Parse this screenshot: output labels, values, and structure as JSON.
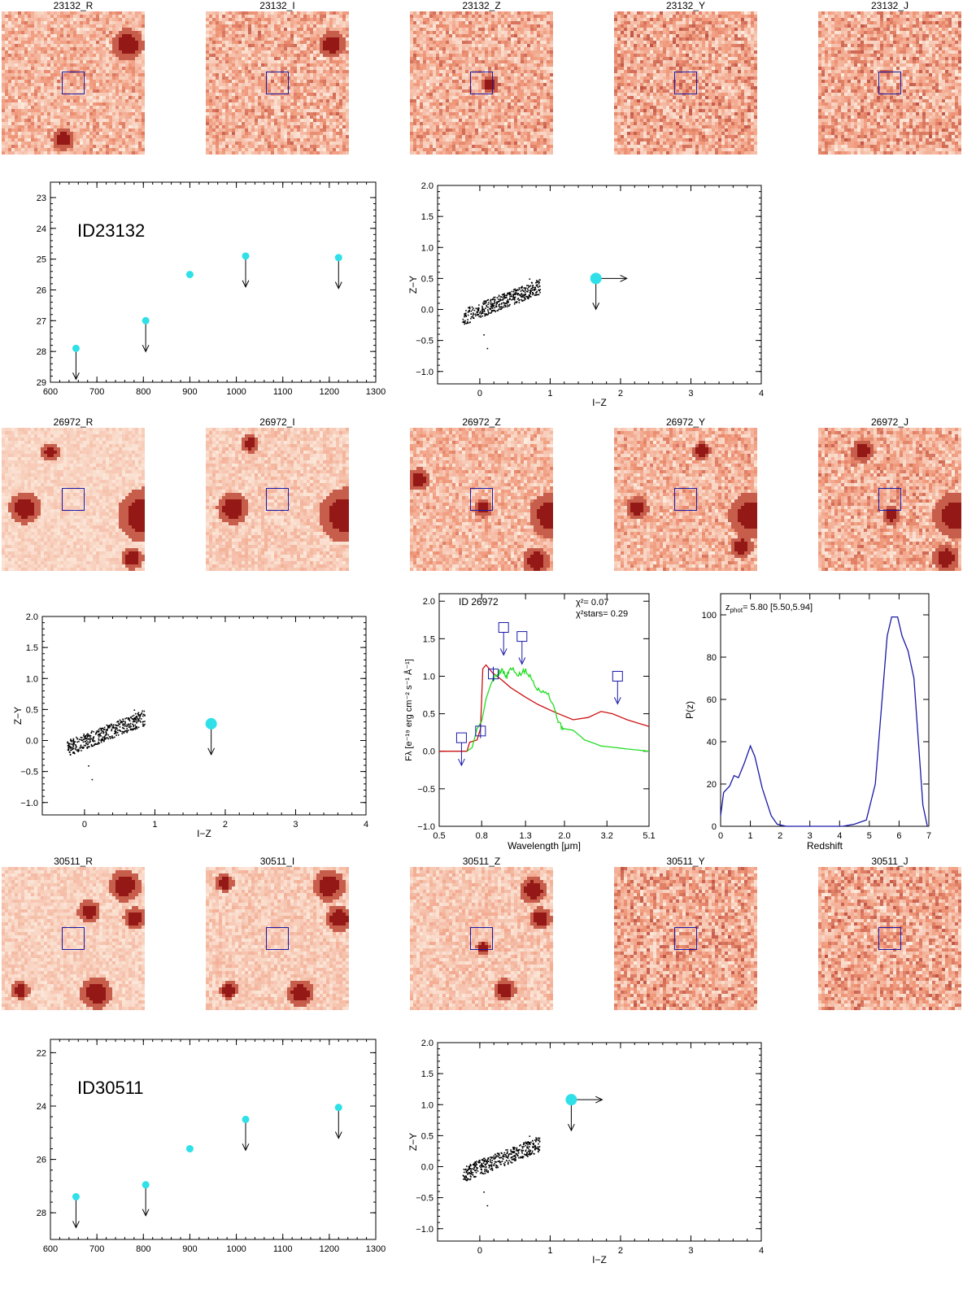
{
  "colors": {
    "cyan": "#2fe0e8",
    "blue": "#1a1aa8",
    "red": "#cc1111",
    "green": "#22dd22",
    "stamp_dark": "#8a0c0c",
    "stamp_light": "#fdf0e4"
  },
  "stamp_rows": [
    {
      "id": "23132",
      "labels": [
        "23132_R",
        "23132_I",
        "23132_Z",
        "23132_Y",
        "23132_J"
      ],
      "noise": [
        0.5,
        0.55,
        0.55,
        0.6,
        0.6
      ]
    },
    {
      "id": "26972",
      "labels": [
        "26972_R",
        "26972_I",
        "26972_Z",
        "26972_Y",
        "26972_J"
      ],
      "noise": [
        0.2,
        0.3,
        0.45,
        0.5,
        0.55
      ]
    },
    {
      "id": "30511",
      "labels": [
        "30511_R",
        "30511_I",
        "30511_Z",
        "30511_Y",
        "30511_J"
      ],
      "noise": [
        0.25,
        0.3,
        0.35,
        0.6,
        0.6
      ]
    }
  ],
  "chart_data": [
    {
      "id": "mag-23132",
      "type": "scatter",
      "label": "ID23132",
      "xlim": [
        600,
        1300
      ],
      "ylim": [
        29,
        22.5
      ],
      "xticks": [
        "600",
        "700",
        "800",
        "900",
        "1000",
        "1100",
        "1200",
        "1300"
      ],
      "yticks": [
        "23",
        "24",
        "25",
        "26",
        "27",
        "28",
        "29"
      ],
      "points": [
        {
          "x": 655,
          "y": 27.9,
          "upper": true
        },
        {
          "x": 805,
          "y": 27.0,
          "upper": true
        },
        {
          "x": 900,
          "y": 25.5,
          "upper": false
        },
        {
          "x": 1020,
          "y": 24.9,
          "upper": true
        },
        {
          "x": 1220,
          "y": 24.95,
          "upper": true
        }
      ]
    },
    {
      "id": "cc-23132",
      "type": "scatter",
      "xlabel": "I−Z",
      "ylabel": "Z−Y",
      "xlim": [
        -0.6,
        4
      ],
      "ylim": [
        -1.2,
        2
      ],
      "xticks": [
        "0",
        "1",
        "2",
        "3",
        "4"
      ],
      "yticks": [
        "−1.0",
        "−0.5",
        "0.0",
        "0.5",
        "1.0",
        "1.5",
        "2.0"
      ],
      "source": {
        "x": 1.65,
        "y": 0.5,
        "lower_x": true,
        "upper_y": true
      }
    },
    {
      "id": "cc-26972",
      "type": "scatter",
      "xlabel": "I−Z",
      "ylabel": "Z−Y",
      "xlim": [
        -0.6,
        4
      ],
      "ylim": [
        -1.2,
        2
      ],
      "xticks": [
        "0",
        "1",
        "2",
        "3",
        "4"
      ],
      "yticks": [
        "−1.0",
        "−0.5",
        "0.0",
        "0.5",
        "1.0",
        "1.5",
        "2.0"
      ],
      "source": {
        "x": 1.8,
        "y": 0.27,
        "lower_x": false,
        "upper_y": true
      }
    },
    {
      "id": "sed-26972",
      "type": "line",
      "label": "ID 26972",
      "chi2": "χ²= 0.07",
      "chi2_stars": "χ²stars= 0.29",
      "xlabel": "Wavelength [μm]",
      "ylabel": "Fλ [e⁻¹⁹ erg cm⁻² s⁻¹ Å⁻¹]",
      "xlim": [
        0.5,
        5.1
      ],
      "ylim": [
        -1.0,
        2.1
      ],
      "xticks": [
        "0.5",
        "0.8",
        "1.3",
        "2.0",
        "3.2",
        "5.1"
      ],
      "yticks": [
        "−1.0",
        "−0.5",
        "0.0",
        "0.5",
        "1.0",
        "1.5",
        "2.0"
      ],
      "galaxy": [
        [
          0.5,
          0.0
        ],
        [
          0.68,
          0.0
        ],
        [
          0.7,
          0.12
        ],
        [
          0.76,
          0.15
        ],
        [
          0.79,
          0.3
        ],
        [
          0.81,
          1.1
        ],
        [
          0.84,
          1.15
        ],
        [
          0.9,
          1.05
        ],
        [
          1.0,
          0.95
        ],
        [
          1.1,
          0.85
        ],
        [
          1.3,
          0.72
        ],
        [
          1.5,
          0.62
        ],
        [
          1.8,
          0.52
        ],
        [
          2.2,
          0.42
        ],
        [
          2.6,
          0.45
        ],
        [
          3.0,
          0.53
        ],
        [
          3.4,
          0.5
        ],
        [
          4.0,
          0.42
        ],
        [
          5.1,
          0.33
        ]
      ],
      "star": [
        [
          0.68,
          0.0
        ],
        [
          0.72,
          0.05
        ],
        [
          0.76,
          0.3
        ],
        [
          0.8,
          0.4
        ],
        [
          0.84,
          0.7
        ],
        [
          0.9,
          0.95
        ],
        [
          0.95,
          1.02
        ],
        [
          1.0,
          1.1
        ],
        [
          1.05,
          0.98
        ],
        [
          1.1,
          1.1
        ],
        [
          1.2,
          1.02
        ],
        [
          1.3,
          1.07
        ],
        [
          1.4,
          0.95
        ],
        [
          1.5,
          0.82
        ],
        [
          1.65,
          0.8
        ],
        [
          1.8,
          0.55
        ],
        [
          1.9,
          0.35
        ],
        [
          2.0,
          0.3
        ],
        [
          2.2,
          0.28
        ],
        [
          2.5,
          0.15
        ],
        [
          3.0,
          0.07
        ],
        [
          4.0,
          0.03
        ],
        [
          5.1,
          0.0
        ]
      ],
      "photometry": [
        {
          "x": 0.64,
          "y": 0.18,
          "upper": true
        },
        {
          "x": 0.79,
          "y": 0.27,
          "upper": false
        },
        {
          "x": 0.91,
          "y": 1.03,
          "upper": false
        },
        {
          "x": 1.02,
          "y": 1.65,
          "upper": true
        },
        {
          "x": 1.25,
          "y": 1.53,
          "upper": true
        },
        {
          "x": 3.6,
          "y": 1.0,
          "upper": true
        }
      ]
    },
    {
      "id": "pz-26972",
      "type": "line",
      "label": "z_phot= 5.80 [5.50,5.94]",
      "label_main": "z",
      "label_sub": "phot",
      "label_rest": "= 5.80 [5.50,5.94]",
      "xlabel": "Redshift",
      "ylabel": "P(z)",
      "xlim": [
        0,
        7
      ],
      "ylim": [
        0,
        110
      ],
      "xticks": [
        "0",
        "1",
        "2",
        "3",
        "4",
        "5",
        "6",
        "7"
      ],
      "yticks": [
        "0",
        "20",
        "40",
        "60",
        "80",
        "100"
      ],
      "curve": [
        [
          0,
          5
        ],
        [
          0.1,
          16
        ],
        [
          0.3,
          19
        ],
        [
          0.45,
          24
        ],
        [
          0.6,
          23
        ],
        [
          0.8,
          30
        ],
        [
          1.0,
          38
        ],
        [
          1.15,
          33
        ],
        [
          1.4,
          18
        ],
        [
          1.7,
          5
        ],
        [
          1.9,
          1
        ],
        [
          2.2,
          0
        ],
        [
          4.1,
          0
        ],
        [
          4.5,
          1
        ],
        [
          4.9,
          3
        ],
        [
          5.2,
          20
        ],
        [
          5.4,
          55
        ],
        [
          5.6,
          90
        ],
        [
          5.75,
          99
        ],
        [
          5.95,
          99
        ],
        [
          6.1,
          90
        ],
        [
          6.3,
          83
        ],
        [
          6.5,
          70
        ],
        [
          6.65,
          40
        ],
        [
          6.8,
          10
        ],
        [
          6.95,
          0
        ]
      ]
    },
    {
      "id": "mag-30511",
      "type": "scatter",
      "label": "ID30511",
      "xlim": [
        600,
        1300
      ],
      "ylim": [
        29,
        21.5
      ],
      "xticks": [
        "600",
        "700",
        "800",
        "900",
        "1000",
        "1100",
        "1200",
        "1300"
      ],
      "yticks": [
        "22",
        "24",
        "26",
        "28"
      ],
      "points": [
        {
          "x": 655,
          "y": 27.4,
          "upper": true
        },
        {
          "x": 805,
          "y": 26.95,
          "upper": true
        },
        {
          "x": 900,
          "y": 25.6,
          "upper": false
        },
        {
          "x": 1020,
          "y": 24.5,
          "upper": true
        },
        {
          "x": 1220,
          "y": 24.05,
          "upper": true
        }
      ]
    },
    {
      "id": "cc-30511",
      "type": "scatter",
      "xlabel": "I−Z",
      "ylabel": "Z−Y",
      "xlim": [
        -0.6,
        4
      ],
      "ylim": [
        -1.2,
        2
      ],
      "xticks": [
        "0",
        "1",
        "2",
        "3",
        "4"
      ],
      "yticks": [
        "−1.0",
        "−0.5",
        "0.0",
        "0.5",
        "1.0",
        "1.5",
        "2.0"
      ],
      "source": {
        "x": 1.3,
        "y": 1.08,
        "lower_x": true,
        "upper_y": true
      }
    }
  ]
}
